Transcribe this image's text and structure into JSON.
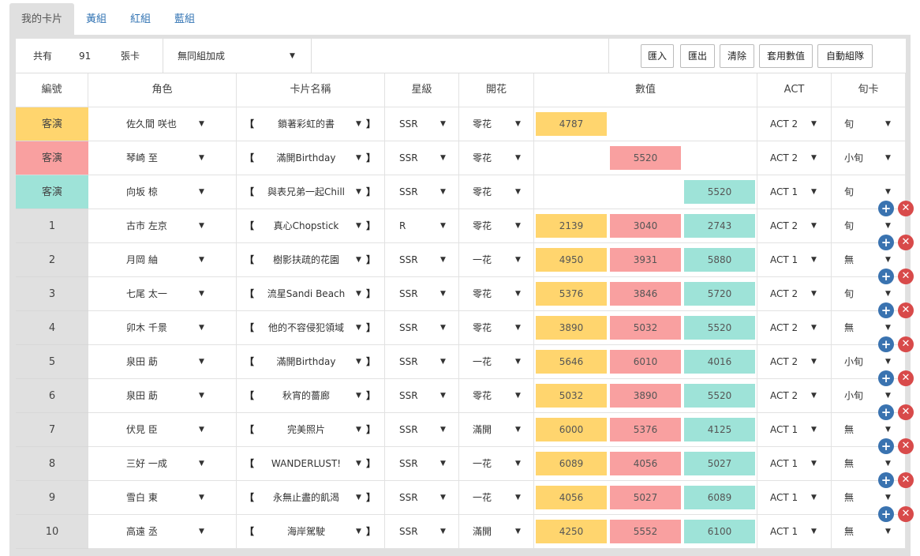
{
  "tabs": [
    {
      "label": "我的卡片",
      "active": true
    },
    {
      "label": "黃組",
      "active": false
    },
    {
      "label": "紅組",
      "active": false
    },
    {
      "label": "藍組",
      "active": false
    }
  ],
  "toolbar": {
    "total_label": "共有",
    "count": "91",
    "unit": "張卡",
    "group_select": "無同組加成",
    "buttons": [
      "匯入",
      "匯出",
      "清除",
      "套用數值",
      "自動組隊"
    ]
  },
  "columns": [
    "編號",
    "角色",
    "卡片名稱",
    "星級",
    "開花",
    "數值",
    "ACT",
    "旬卡"
  ],
  "colors": {
    "yellow": "#ffd56e",
    "red": "#f9a0a0",
    "teal": "#9ee3d8",
    "guest_yellow": "#ffd56e",
    "guest_red": "#f9a0a0",
    "guest_teal": "#9ee3d8"
  },
  "rows": [
    {
      "no": "客演",
      "guest": "yellow",
      "char": "佐久間 咲也",
      "card": "鎖著彩虹的書",
      "star": "SSR",
      "bloom": "零花",
      "y": "4787",
      "r": "",
      "b": "",
      "act": "ACT 2",
      "shun": "旬",
      "actions": false
    },
    {
      "no": "客演",
      "guest": "red",
      "char": "琴崎 至",
      "card": "滿開Birthday",
      "star": "SSR",
      "bloom": "零花",
      "y": "",
      "r": "5520",
      "b": "",
      "act": "ACT 2",
      "shun": "小旬",
      "actions": false
    },
    {
      "no": "客演",
      "guest": "teal",
      "char": "向坂 椋",
      "card": "與表兄弟一起Chill",
      "star": "SSR",
      "bloom": "零花",
      "y": "",
      "r": "",
      "b": "5520",
      "act": "ACT 1",
      "shun": "旬",
      "actions": false
    },
    {
      "no": "1",
      "char": "古市 左京",
      "card": "真心Chopstick",
      "star": "R",
      "bloom": "零花",
      "y": "2139",
      "r": "3040",
      "b": "2743",
      "act": "ACT 2",
      "shun": "旬",
      "actions": true
    },
    {
      "no": "2",
      "char": "月岡 紬",
      "card": "樹影扶疏的花園",
      "star": "SSR",
      "bloom": "一花",
      "y": "4950",
      "r": "3931",
      "b": "5880",
      "act": "ACT 1",
      "shun": "無",
      "actions": true
    },
    {
      "no": "3",
      "char": "七尾 太一",
      "card": "流星Sandi Beach",
      "star": "SSR",
      "bloom": "零花",
      "y": "5376",
      "r": "3846",
      "b": "5720",
      "act": "ACT 2",
      "shun": "旬",
      "actions": true
    },
    {
      "no": "4",
      "char": "卯木 千景",
      "card": "他的不容侵犯領域",
      "star": "SSR",
      "bloom": "零花",
      "y": "3890",
      "r": "5032",
      "b": "5520",
      "act": "ACT 2",
      "shun": "無",
      "actions": true
    },
    {
      "no": "5",
      "char": "泉田 莇",
      "card": "滿開Birthday",
      "star": "SSR",
      "bloom": "一花",
      "y": "5646",
      "r": "6010",
      "b": "4016",
      "act": "ACT 2",
      "shun": "小旬",
      "actions": true
    },
    {
      "no": "6",
      "char": "泉田 莇",
      "card": "秋宵的薔廊",
      "star": "SSR",
      "bloom": "零花",
      "y": "5032",
      "r": "3890",
      "b": "5520",
      "act": "ACT 2",
      "shun": "小旬",
      "actions": true
    },
    {
      "no": "7",
      "char": "伏見 臣",
      "card": "完美照片",
      "star": "SSR",
      "bloom": "滿開",
      "y": "6000",
      "r": "5376",
      "b": "4125",
      "act": "ACT 1",
      "shun": "無",
      "actions": true
    },
    {
      "no": "8",
      "char": "三好 一成",
      "card": "WANDERLUST!",
      "star": "SSR",
      "bloom": "一花",
      "y": "6089",
      "r": "4056",
      "b": "5027",
      "act": "ACT 1",
      "shun": "無",
      "actions": true
    },
    {
      "no": "9",
      "char": "雪白 東",
      "card": "永無止盡的飢渴",
      "star": "SSR",
      "bloom": "一花",
      "y": "4056",
      "r": "5027",
      "b": "6089",
      "act": "ACT 1",
      "shun": "無",
      "actions": true
    },
    {
      "no": "10",
      "char": "高遠 丞",
      "card": "海岸駕駛",
      "star": "SSR",
      "bloom": "滿開",
      "y": "4250",
      "r": "5552",
      "b": "6100",
      "act": "ACT 1",
      "shun": "無",
      "actions": true
    }
  ],
  "icons": {
    "add": "plus-circle-icon",
    "remove": "close-circle-icon",
    "dropdown": "triangle-down-icon"
  }
}
